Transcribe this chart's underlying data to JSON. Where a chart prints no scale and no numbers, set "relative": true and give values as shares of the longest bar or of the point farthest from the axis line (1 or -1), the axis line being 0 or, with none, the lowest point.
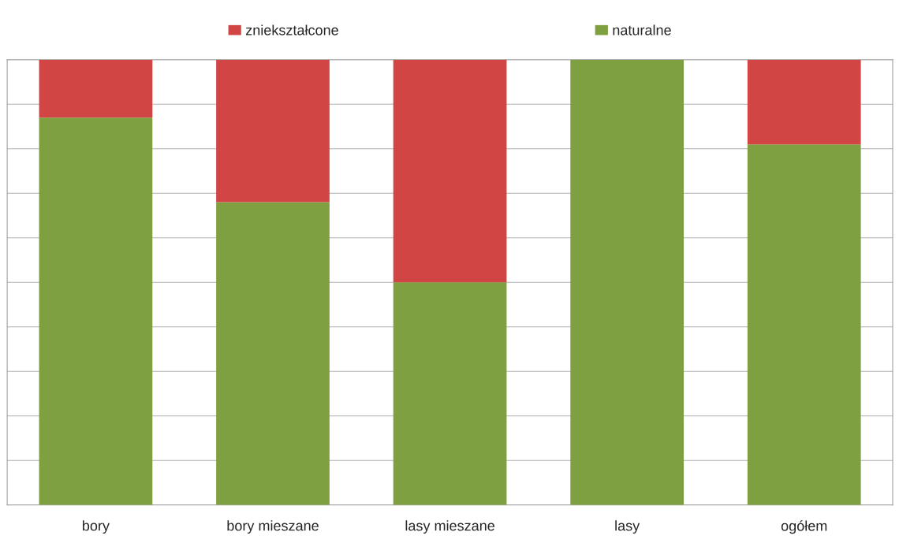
{
  "chart_data": {
    "type": "bar",
    "stacked": true,
    "relative": true,
    "categories": [
      "bory",
      "bory mieszane",
      "lasy mieszane",
      "lasy",
      "ogółem"
    ],
    "series": [
      {
        "name": "naturalne",
        "color": "#7fa040",
        "values": [
          0.87,
          0.68,
          0.5,
          1.0,
          0.81
        ]
      },
      {
        "name": "zniekształcone",
        "color": "#d24545",
        "values": [
          0.13,
          0.32,
          0.5,
          0.0,
          0.19
        ]
      }
    ],
    "grid": "y",
    "legend": "top"
  }
}
